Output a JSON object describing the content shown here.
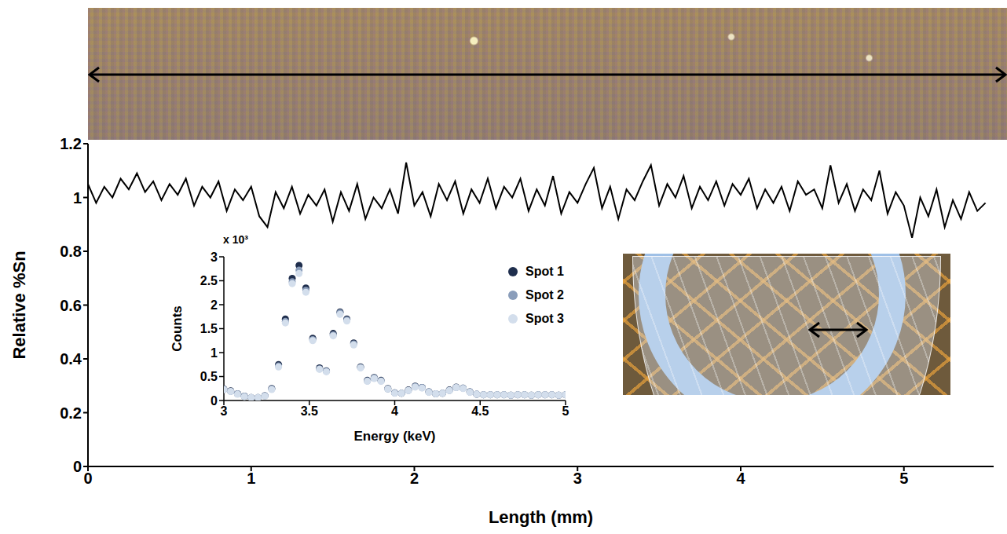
{
  "chart_data": [
    {
      "type": "line",
      "x_label": "Length (mm)",
      "y_label": "Relative %Sn",
      "color": "#000000",
      "xlim": [
        0,
        5.55
      ],
      "xticks": [
        0,
        1,
        2,
        3,
        4,
        5
      ],
      "ylim": [
        0,
        1.2
      ],
      "yticks": [
        0,
        0.2,
        0.4,
        0.6,
        0.8,
        1,
        1.2
      ],
      "x": [
        0,
        0.05,
        0.1,
        0.15,
        0.2,
        0.25,
        0.3,
        0.35,
        0.4,
        0.45,
        0.5,
        0.55,
        0.6,
        0.65,
        0.7,
        0.75,
        0.8,
        0.85,
        0.9,
        0.95,
        1,
        1.05,
        1.1,
        1.15,
        1.2,
        1.25,
        1.3,
        1.35,
        1.4,
        1.45,
        1.5,
        1.55,
        1.6,
        1.65,
        1.7,
        1.75,
        1.8,
        1.85,
        1.9,
        1.95,
        2,
        2.05,
        2.1,
        2.15,
        2.2,
        2.25,
        2.3,
        2.35,
        2.4,
        2.45,
        2.5,
        2.55,
        2.6,
        2.65,
        2.7,
        2.75,
        2.8,
        2.85,
        2.9,
        2.95,
        3,
        3.05,
        3.1,
        3.15,
        3.2,
        3.25,
        3.3,
        3.35,
        3.4,
        3.45,
        3.5,
        3.55,
        3.6,
        3.65,
        3.7,
        3.75,
        3.8,
        3.85,
        3.9,
        3.95,
        4,
        4.05,
        4.1,
        4.15,
        4.2,
        4.25,
        4.3,
        4.35,
        4.4,
        4.45,
        4.5,
        4.55,
        4.6,
        4.65,
        4.7,
        4.75,
        4.8,
        4.85,
        4.9,
        4.95,
        5,
        5.05,
        5.1,
        5.15,
        5.2,
        5.25,
        5.3,
        5.35,
        5.4,
        5.45,
        5.5
      ],
      "values": [
        1.05,
        0.98,
        1.04,
        1.0,
        1.07,
        1.03,
        1.09,
        1.02,
        1.06,
        0.99,
        1.05,
        1.01,
        1.07,
        0.97,
        1.04,
        1.0,
        1.06,
        0.95,
        1.03,
        0.99,
        1.04,
        0.93,
        0.89,
        1.02,
        0.96,
        1.04,
        0.94,
        1.01,
        0.97,
        1.03,
        0.91,
        1.02,
        0.95,
        1.05,
        0.92,
        1.0,
        0.96,
        1.03,
        0.94,
        1.13,
        0.97,
        1.02,
        0.93,
        1.05,
        0.99,
        1.06,
        0.94,
        1.03,
        0.98,
        1.07,
        0.96,
        1.04,
        1.0,
        1.07,
        0.95,
        1.03,
        0.97,
        1.08,
        0.94,
        1.02,
        0.98,
        1.05,
        1.11,
        0.96,
        1.04,
        0.92,
        1.03,
        0.99,
        1.06,
        1.12,
        0.97,
        1.05,
        1.0,
        1.08,
        0.96,
        1.04,
        0.99,
        1.06,
        0.97,
        1.05,
        1.01,
        1.07,
        0.96,
        1.03,
        0.98,
        1.04,
        0.95,
        1.06,
        1.01,
        1.03,
        0.96,
        1.12,
        0.98,
        1.05,
        0.95,
        1.03,
        0.99,
        1.1,
        0.94,
        1.02,
        0.97,
        0.85,
        1.0,
        0.93,
        1.03,
        0.89,
        0.99,
        0.92,
        1.02,
        0.95,
        0.98
      ]
    },
    {
      "type": "scatter",
      "x_label": "Energy (keV)",
      "y_label": "Counts",
      "annotations": [
        "x 10³"
      ],
      "marker": "circle",
      "legend": "top-right",
      "xlim": [
        3,
        5
      ],
      "xticks": [
        3,
        3.5,
        4,
        4.5,
        5
      ],
      "ylim": [
        0,
        3
      ],
      "yticks": [
        0,
        0.5,
        1,
        1.5,
        2,
        2.5,
        3
      ],
      "x": [
        3,
        3.04,
        3.08,
        3.12,
        3.16,
        3.2,
        3.24,
        3.28,
        3.32,
        3.36,
        3.4,
        3.44,
        3.48,
        3.52,
        3.56,
        3.6,
        3.64,
        3.68,
        3.72,
        3.76,
        3.8,
        3.84,
        3.88,
        3.92,
        3.96,
        4,
        4.04,
        4.08,
        4.12,
        4.16,
        4.2,
        4.24,
        4.28,
        4.32,
        4.36,
        4.4,
        4.44,
        4.48,
        4.52,
        4.56,
        4.6,
        4.64,
        4.68,
        4.72,
        4.76,
        4.8,
        4.84,
        4.88,
        4.92,
        4.96,
        5
      ],
      "series": [
        {
          "name": "Spot 1",
          "color": "#1f2e4d",
          "values": [
            0.24,
            0.2,
            0.14,
            0.09,
            0.06,
            0.06,
            0.1,
            0.25,
            0.75,
            1.7,
            2.55,
            2.82,
            2.35,
            1.3,
            0.68,
            0.62,
            1.4,
            1.85,
            1.7,
            1.2,
            0.7,
            0.42,
            0.48,
            0.42,
            0.25,
            0.16,
            0.15,
            0.22,
            0.3,
            0.27,
            0.18,
            0.14,
            0.15,
            0.22,
            0.28,
            0.26,
            0.18,
            0.13,
            0.12,
            0.12,
            0.12,
            0.12,
            0.11,
            0.12,
            0.12,
            0.11,
            0.12,
            0.12,
            0.12,
            0.11,
            0.12
          ]
        },
        {
          "name": "Spot 2",
          "color": "#8a9dba",
          "values": [
            0.23,
            0.19,
            0.14,
            0.09,
            0.06,
            0.06,
            0.1,
            0.24,
            0.72,
            1.65,
            2.48,
            2.72,
            2.3,
            1.27,
            0.66,
            0.61,
            1.37,
            1.83,
            1.68,
            1.18,
            0.69,
            0.41,
            0.47,
            0.41,
            0.24,
            0.16,
            0.15,
            0.21,
            0.29,
            0.27,
            0.18,
            0.14,
            0.15,
            0.21,
            0.27,
            0.26,
            0.18,
            0.13,
            0.12,
            0.12,
            0.12,
            0.12,
            0.11,
            0.12,
            0.12,
            0.11,
            0.12,
            0.12,
            0.12,
            0.11,
            0.12
          ]
        },
        {
          "name": "Spot 3",
          "color": "#d3deec",
          "values": [
            0.23,
            0.19,
            0.13,
            0.08,
            0.06,
            0.06,
            0.09,
            0.23,
            0.7,
            1.62,
            2.44,
            2.65,
            2.26,
            1.25,
            0.65,
            0.6,
            1.35,
            1.8,
            1.66,
            1.16,
            0.68,
            0.4,
            0.46,
            0.4,
            0.24,
            0.15,
            0.15,
            0.21,
            0.28,
            0.26,
            0.17,
            0.14,
            0.15,
            0.21,
            0.27,
            0.25,
            0.17,
            0.13,
            0.12,
            0.12,
            0.12,
            0.12,
            0.11,
            0.12,
            0.12,
            0.11,
            0.12,
            0.12,
            0.12,
            0.11,
            0.12
          ]
        }
      ]
    }
  ]
}
